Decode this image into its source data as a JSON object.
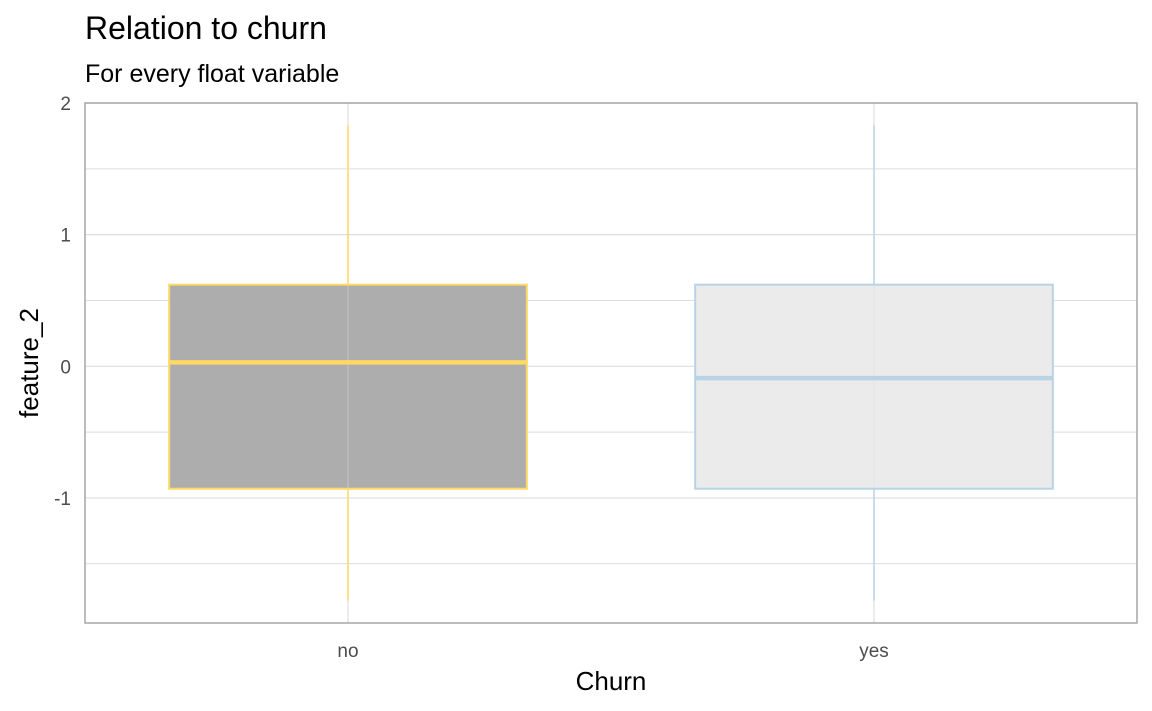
{
  "chart_data": {
    "type": "boxplot",
    "title": "Relation to churn",
    "subtitle": "For every float variable",
    "xlabel": "Churn",
    "ylabel": "feature_2",
    "categories": [
      "no",
      "yes"
    ],
    "ylim": [
      -1.95,
      2.0
    ],
    "y_ticks": [
      2,
      1,
      0,
      -1
    ],
    "y_tick_labels": [
      "2",
      "1",
      "0",
      "-1"
    ],
    "grid": true,
    "boxes": [
      {
        "category": "no",
        "whisker_low": -1.78,
        "q1": -0.93,
        "median": 0.03,
        "q3": 0.62,
        "whisker_high": 1.83,
        "fill": "#adadad",
        "stroke": "#ffd966"
      },
      {
        "category": "yes",
        "whisker_low": -1.78,
        "q1": -0.93,
        "median": -0.09,
        "q3": 0.62,
        "whisker_high": 1.83,
        "fill": "#ebebeb",
        "stroke": "#b9d3e6"
      }
    ],
    "colors": {
      "panel_border": "#a6a6a6",
      "grid": "#dedede",
      "tick_text": "#4d4d4d"
    }
  }
}
